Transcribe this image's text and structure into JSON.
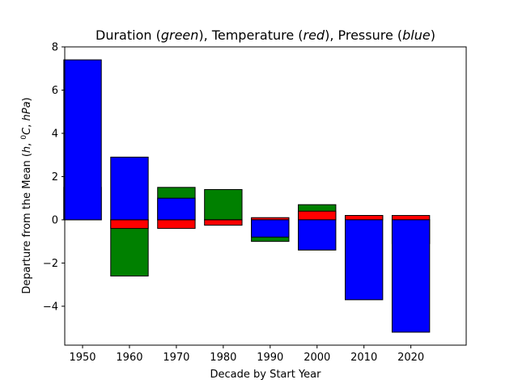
{
  "chart_data": {
    "type": "bar",
    "title_parts": [
      {
        "text": "Duration (",
        "italic": false
      },
      {
        "text": "green",
        "italic": true
      },
      {
        "text": "),  Temperature (",
        "italic": false
      },
      {
        "text": "red",
        "italic": true
      },
      {
        "text": "),  Pressure (",
        "italic": false
      },
      {
        "text": "blue",
        "italic": true
      },
      {
        "text": ")",
        "italic": false
      }
    ],
    "xlabel": "Decade by Start Year",
    "ylabel_parts": [
      {
        "text": "Departure from the Mean (",
        "italic": false
      },
      {
        "text": "h",
        "italic": true
      },
      {
        "text": ", ",
        "italic": false
      },
      {
        "text": "0",
        "italic": false,
        "sup": true
      },
      {
        "text": "C",
        "italic": true
      },
      {
        "text": ", ",
        "italic": false
      },
      {
        "text": "hPa",
        "italic": true
      },
      {
        "text": ")",
        "italic": false
      }
    ],
    "categories": [
      "1950",
      "1960",
      "1970",
      "1980",
      "1990",
      "2000",
      "2010",
      "2020"
    ],
    "x": [
      1950,
      1960,
      1970,
      1980,
      1990,
      2000,
      2010,
      2020
    ],
    "bar_width": 8,
    "xlim": [
      1946.2,
      2031.8
    ],
    "ylim": [
      -5.8,
      8
    ],
    "yticks": [
      -4,
      -2,
      0,
      2,
      4,
      6,
      8
    ],
    "series": [
      {
        "values": [
          1.5,
          -2.6,
          1.5,
          1.4,
          -1.0,
          0.7,
          0.2,
          -1.1
        ],
        "color": "#008000"
      },
      {
        "values": [
          0.0,
          -0.4,
          -0.4,
          -0.25,
          0.1,
          0.4,
          0.2,
          0.2
        ],
        "color": "#ff0000"
      },
      {
        "values": [
          7.4,
          2.9,
          1.0,
          0.0,
          -0.8,
          -1.4,
          -3.7,
          -5.2
        ],
        "color": "#0000ff"
      }
    ]
  }
}
